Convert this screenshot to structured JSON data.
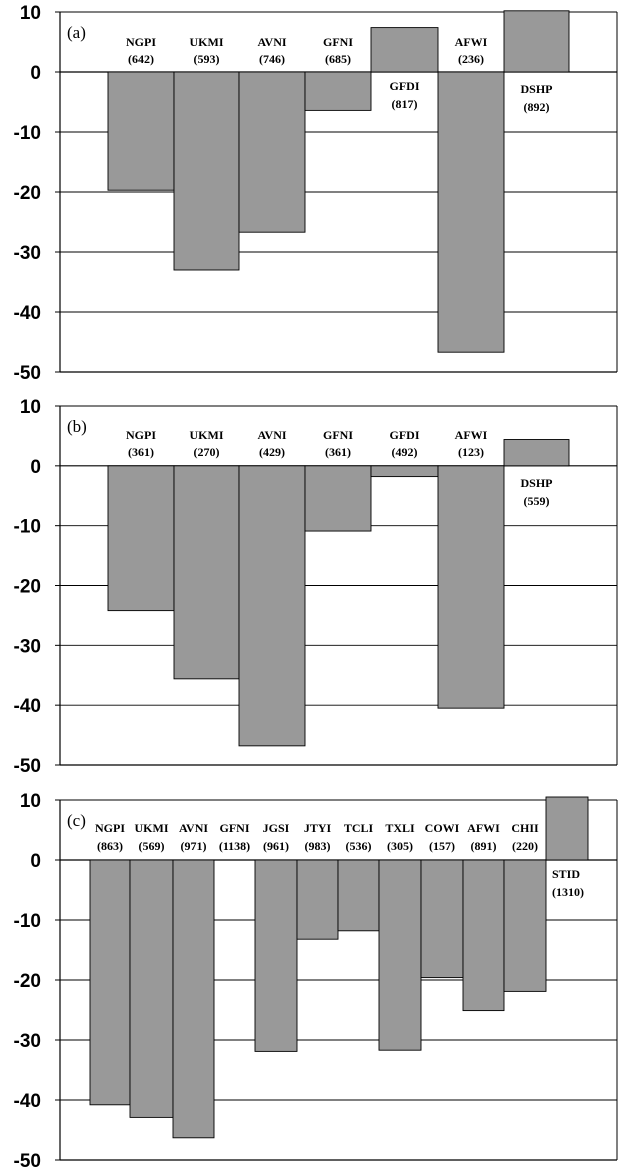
{
  "chart_data": [
    {
      "type": "bar",
      "panel_label": "(a)",
      "ylim": [
        -50,
        10
      ],
      "yticks": [
        "10",
        "0",
        "-10",
        "-20",
        "-30",
        "-40",
        "-50"
      ],
      "grid": true,
      "bar_color": "#999999",
      "categories": [
        "NGPI",
        "UKMI",
        "AVNI",
        "GFNI",
        "GFDI",
        "AFWI",
        "DSHP"
      ],
      "counts": [
        "(642)",
        "(593)",
        "(746)",
        "(685)",
        "(817)",
        "(236)",
        "(892)"
      ],
      "values": [
        -19.7,
        -33.0,
        -26.7,
        -6.4,
        7.4,
        -46.7,
        10.2
      ]
    },
    {
      "type": "bar",
      "panel_label": "(b)",
      "ylim": [
        -50,
        10
      ],
      "yticks": [
        "10",
        "0",
        "-10",
        "-20",
        "-30",
        "-40",
        "-50"
      ],
      "grid": true,
      "bar_color": "#999999",
      "categories": [
        "NGPI",
        "UKMI",
        "AVNI",
        "GFNI",
        "GFDI",
        "AFWI",
        "DSHP"
      ],
      "counts": [
        "(361)",
        "(270)",
        "(429)",
        "(361)",
        "(492)",
        "(123)",
        "(559)"
      ],
      "values": [
        -24.2,
        -35.6,
        -46.8,
        -10.9,
        -1.8,
        -40.5,
        4.4
      ]
    },
    {
      "type": "bar",
      "panel_label": "(c)",
      "ylim": [
        -50,
        10
      ],
      "yticks": [
        "10",
        "0",
        "-10",
        "-20",
        "-30",
        "-40",
        "-50"
      ],
      "grid": true,
      "bar_color": "#999999",
      "categories": [
        "NGPI",
        "UKMI",
        "AVNI",
        "GFNI",
        "JGSI",
        "JTYI",
        "TCLI",
        "TXLI",
        "COWI",
        "AFWI",
        "CHII",
        "STID"
      ],
      "counts": [
        "(863)",
        "(569)",
        "(971)",
        "(1138)",
        "(961)",
        "(983)",
        "(536)",
        "(305)",
        "(157)",
        "(891)",
        "(220)",
        "(1310)"
      ],
      "values": [
        -40.8,
        -42.9,
        -46.3,
        0,
        -31.9,
        -13.2,
        -11.8,
        -31.7,
        -19.6,
        -25.1,
        -21.9,
        10.5
      ]
    }
  ]
}
